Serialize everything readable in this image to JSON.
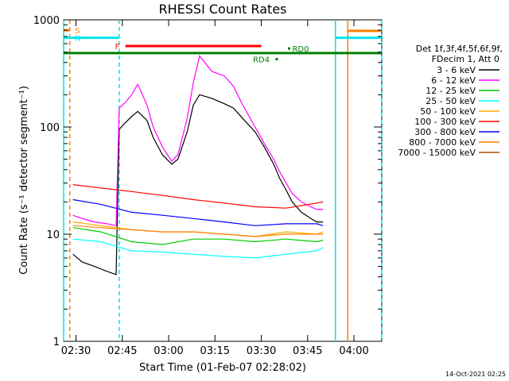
{
  "chart_data": {
    "type": "line",
    "title": "RHESSI Count Rates",
    "xlabel": "Start Time (01-Feb-07 02:28:02)",
    "ylabel": "Count Rate (s⁻¹ detector segment⁻¹)",
    "y_scale": "log",
    "ylim": [
      1,
      1000
    ],
    "xlim_minutes_after_0228": [
      -2,
      101
    ],
    "x_ticks": [
      "02:30",
      "02:45",
      "03:00",
      "03:15",
      "03:30",
      "03:45",
      "04:00"
    ],
    "y_ticks": [
      "1",
      "10",
      "100",
      "1000"
    ],
    "legend_header": [
      "Det 1f,3f,4f,5f,6f,9f,",
      "FDecim 1, Att 0"
    ],
    "legend_position": "right",
    "timestamp": "14-Oct-2021 02:25",
    "series": [
      {
        "name": "3 - 6 keV",
        "color": "#000000",
        "x": [
          1,
          4,
          8,
          12,
          15,
          16,
          18,
          20,
          22,
          25,
          27,
          30,
          33,
          35,
          38,
          40,
          42,
          46,
          50,
          53,
          56,
          60,
          63,
          66,
          68,
          70,
          72,
          75,
          78,
          80,
          82
        ],
        "values": [
          6.5,
          5.5,
          5,
          4.5,
          4.2,
          95,
          110,
          125,
          140,
          115,
          80,
          55,
          45,
          50,
          90,
          160,
          200,
          185,
          165,
          150,
          120,
          90,
          65,
          45,
          33,
          26,
          20,
          16,
          14,
          13,
          13
        ]
      },
      {
        "name": "6 - 12 keV",
        "color": "#ff00ff",
        "x": [
          1,
          4,
          8,
          12,
          15,
          16,
          18,
          20,
          22,
          25,
          27,
          30,
          33,
          35,
          38,
          40,
          42,
          46,
          50,
          53,
          56,
          60,
          63,
          66,
          68,
          70,
          72,
          75,
          78,
          80,
          82
        ],
        "values": [
          15,
          14,
          13,
          12.5,
          12,
          150,
          170,
          200,
          250,
          160,
          100,
          65,
          48,
          55,
          120,
          260,
          460,
          330,
          300,
          240,
          160,
          100,
          70,
          50,
          38,
          30,
          24,
          20,
          18,
          17,
          17
        ]
      },
      {
        "name": "12 - 25 keV",
        "color": "#00cc00",
        "x": [
          1,
          10,
          20,
          30,
          40,
          50,
          60,
          70,
          80,
          82
        ],
        "values": [
          11.5,
          10.5,
          8.5,
          8,
          9,
          9,
          8.5,
          9,
          8.5,
          8.8
        ]
      },
      {
        "name": "25 - 50 keV",
        "color": "#00ffff",
        "x": [
          1,
          10,
          20,
          30,
          40,
          50,
          60,
          70,
          80,
          82
        ],
        "values": [
          9,
          8.5,
          7,
          6.8,
          6.5,
          6.2,
          6,
          6.5,
          7,
          7.5
        ]
      },
      {
        "name": "50 - 100 keV",
        "color": "#ffaa00",
        "x": [
          1,
          10,
          20,
          30,
          40,
          50,
          60,
          70,
          80,
          82
        ],
        "values": [
          13,
          12,
          11,
          10.5,
          10.5,
          10,
          9.5,
          10.5,
          10,
          10.5
        ]
      },
      {
        "name": "100 - 300 keV",
        "color": "#ff0000",
        "x": [
          1,
          10,
          20,
          30,
          40,
          50,
          60,
          70,
          80,
          82
        ],
        "values": [
          29,
          27,
          25,
          23,
          21,
          19.5,
          18,
          17.5,
          19.5,
          20
        ]
      },
      {
        "name": "300 - 800 keV",
        "color": "#0000ff",
        "x": [
          1,
          10,
          20,
          30,
          40,
          50,
          60,
          70,
          80,
          82
        ],
        "values": [
          21,
          19,
          16,
          15,
          14,
          13,
          12,
          12.5,
          12.5,
          12
        ]
      },
      {
        "name": "800 - 7000 keV",
        "color": "#ff8000",
        "x": [
          1,
          10,
          20,
          30,
          40,
          50,
          60,
          70,
          80,
          82
        ],
        "values": [
          12,
          11.5,
          11,
          10.5,
          10.5,
          10,
          9.5,
          10,
          10,
          10
        ]
      },
      {
        "name": "7000 - 15000 keV",
        "color": "#a05000",
        "x": [],
        "values": []
      }
    ],
    "bars": [
      {
        "label": "S",
        "color": "#ff8000",
        "x": [
          -2,
          0
        ],
        "y": 800
      },
      {
        "label": "N",
        "color": "#00e5ee",
        "x": [
          -2,
          16
        ],
        "y": 680
      },
      {
        "label": "F",
        "color": "#ff0000",
        "x": [
          18,
          62
        ],
        "y": 570
      },
      {
        "label": "",
        "color": "#008000",
        "x": [
          -2,
          101
        ],
        "y": 490
      },
      {
        "label": "",
        "color": "#00e5ee",
        "x": [
          86,
          101
        ],
        "y": 680
      },
      {
        "label": "",
        "color": "#ff8000",
        "x": [
          90,
          101
        ],
        "y": 790
      }
    ],
    "markers": [
      {
        "label": "RD4",
        "color": "#008000",
        "x": 67,
        "y": 430
      },
      {
        "label": "RD0",
        "color": "#008000",
        "x": 71,
        "y": 540
      }
    ],
    "vlines": [
      {
        "x": -2,
        "color": "#00e5ee",
        "dash": false
      },
      {
        "x": 0,
        "color": "#ff8000",
        "dash": true
      },
      {
        "x": 16,
        "color": "#00e5ee",
        "dash": true
      },
      {
        "x": 86,
        "color": "#00e5ee",
        "dash": false
      },
      {
        "x": 90,
        "color": "#ff8000",
        "dash": false
      },
      {
        "x": 101,
        "color": "#00e5ee",
        "dash": true
      }
    ]
  }
}
